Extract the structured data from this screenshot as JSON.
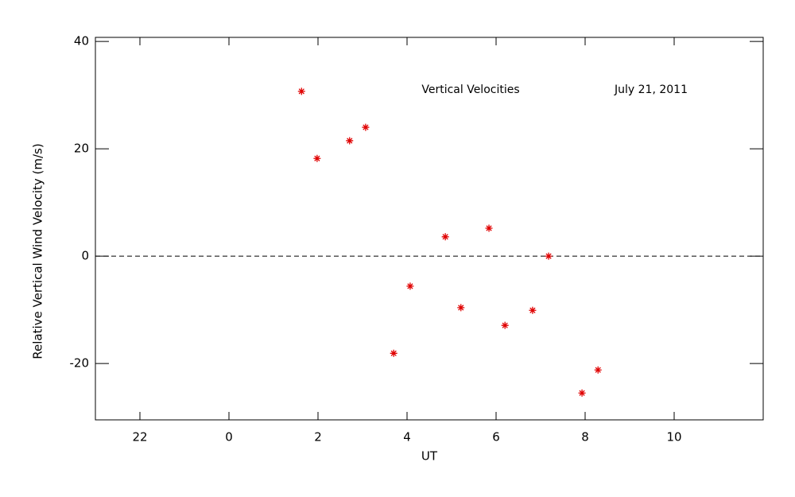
{
  "chart_data": {
    "type": "scatter",
    "xlabel": "UT",
    "ylabel": "Relative Vertical Wind Velocity (m/s)",
    "annotations": [
      "Vertical Velocities",
      "July 21, 2011"
    ],
    "x": [
      1.63,
      1.98,
      2.71,
      3.07,
      3.7,
      4.07,
      4.86,
      5.21,
      5.84,
      6.2,
      6.82,
      7.18,
      7.93,
      8.29
    ],
    "series": [
      {
        "name": "Vertical Velocities",
        "color": "#e00000",
        "values": [
          30.7,
          18.2,
          21.5,
          24.0,
          -18.1,
          -5.6,
          3.6,
          -9.6,
          5.2,
          -12.9,
          -10.1,
          0.0,
          -25.5,
          -21.2
        ]
      }
    ],
    "xlim": [
      -3,
      12
    ],
    "ylim": [
      -30.5,
      40.75
    ],
    "xticks": [
      {
        "value": -2,
        "label": "22"
      },
      0,
      2,
      4,
      6,
      8,
      10
    ],
    "yticks": [
      -20,
      0,
      20,
      40
    ],
    "hline": 0
  }
}
